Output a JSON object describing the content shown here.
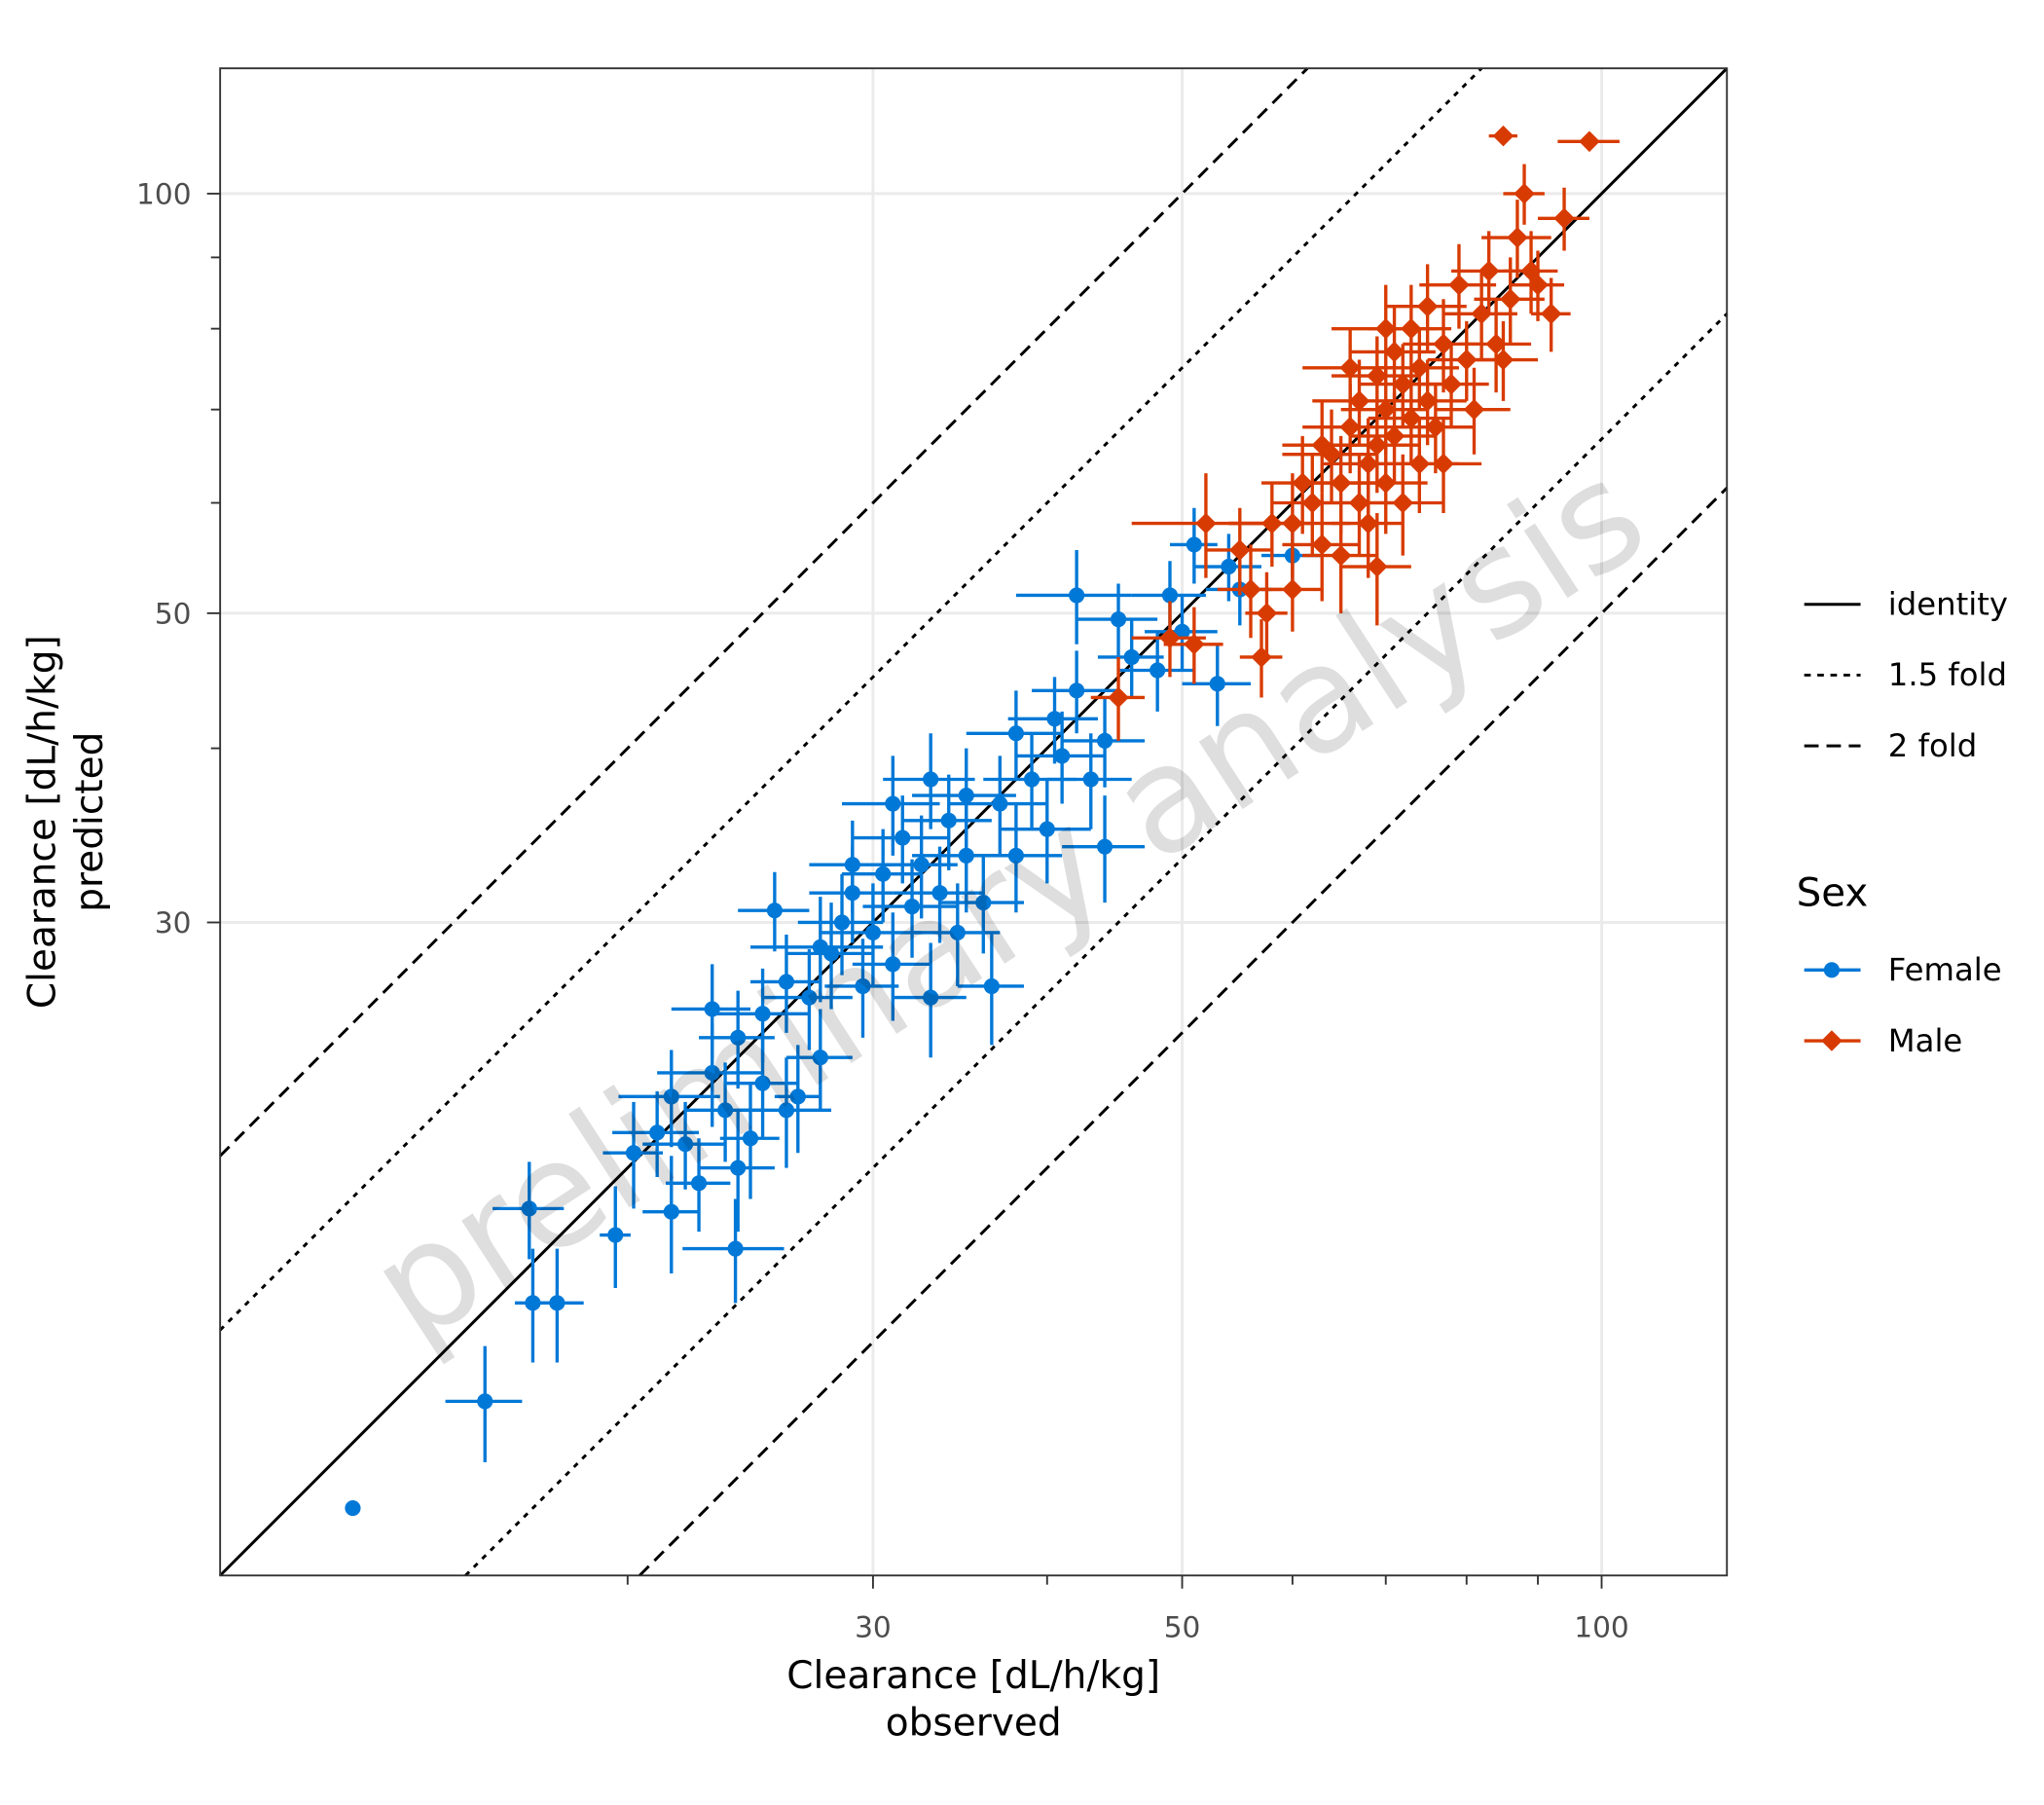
{
  "chart_data": {
    "type": "scatter",
    "x_scale": "log",
    "y_scale": "log",
    "xlim": [
      10.2,
      123
    ],
    "ylim": [
      10.2,
      123
    ],
    "x_ticks": [
      30,
      50,
      100
    ],
    "y_ticks": [
      30,
      50,
      100
    ],
    "x_tick_labels": [
      "30",
      "50",
      "100"
    ],
    "y_tick_labels": [
      "30",
      "50",
      "100"
    ],
    "x_minor_ticks": [
      20,
      40,
      60,
      70,
      80,
      90
    ],
    "y_minor_ticks": [
      40,
      60,
      70,
      80,
      90
    ],
    "xlabel_line1": "Clearance [dL/h/kg]",
    "xlabel_line2": "observed",
    "ylabel_line1": "Clearance [dL/h/kg]",
    "ylabel_line2": "predicted",
    "watermark": "preliminary analysis",
    "grid": true,
    "reference_lines": [
      {
        "name": "identity",
        "factor": 1,
        "style": "solid"
      },
      {
        "name": "1.5 fold",
        "factor": 1.5,
        "style": "dotted"
      },
      {
        "name": "2 fold",
        "factor": 2,
        "style": "dashed"
      }
    ],
    "legend_title": "Sex",
    "legend_placement": "right",
    "point_format": [
      "observed",
      "predicted",
      "observed_err",
      "predicted_err"
    ],
    "series": [
      {
        "name": "Female",
        "color": "#0078d7",
        "marker": "circle",
        "points": [
          [
            12.7,
            11.4,
            0,
            0
          ],
          [
            15.8,
            13.6,
            1,
            1.3
          ],
          [
            17,
            18.7,
            1,
            1.5
          ],
          [
            17.1,
            16,
            0.5,
            1.5
          ],
          [
            17.8,
            16,
            0.8,
            1.5
          ],
          [
            19.6,
            17.9,
            0.5,
            1.5
          ],
          [
            23.9,
            17.5,
            2,
            1.5
          ],
          [
            20.2,
            20.5,
            1,
            1.8
          ],
          [
            21,
            21.2,
            1.5,
            1.5
          ],
          [
            21.5,
            22.5,
            1.8,
            1.8
          ],
          [
            22,
            20.8,
            1.5,
            1.5
          ],
          [
            22.5,
            19.5,
            1.2,
            1.5
          ],
          [
            23,
            23.4,
            2,
            2
          ],
          [
            23.5,
            22,
            1.5,
            1.8
          ],
          [
            24,
            24.8,
            1.5,
            2
          ],
          [
            24.5,
            21,
            1.2,
            2
          ],
          [
            25,
            25.8,
            2,
            2
          ],
          [
            25,
            23,
            1.5,
            2
          ],
          [
            25.5,
            30.6,
            1.5,
            2
          ],
          [
            26,
            27.2,
            1.5,
            2.2
          ],
          [
            26.5,
            22.5,
            1,
            2
          ],
          [
            27,
            26.5,
            2,
            2.2
          ],
          [
            27.5,
            24,
            1.5,
            2
          ],
          [
            28,
            28.5,
            2,
            2.5
          ],
          [
            28.5,
            30,
            2,
            2.5
          ],
          [
            29,
            31.5,
            2,
            2.5
          ],
          [
            29.5,
            27,
            1.8,
            2.2
          ],
          [
            30,
            29.5,
            2.5,
            2.5
          ],
          [
            30.5,
            32.5,
            2,
            2.5
          ],
          [
            31,
            28,
            2,
            2.5
          ],
          [
            31.5,
            34.5,
            2.5,
            2.5
          ],
          [
            32,
            30.8,
            2.5,
            2.5
          ],
          [
            32.5,
            33,
            2,
            2.8
          ],
          [
            33,
            26.5,
            2,
            2.5
          ],
          [
            33.5,
            31.5,
            2.5,
            2.5
          ],
          [
            34,
            35.5,
            2.5,
            2.8
          ],
          [
            34.5,
            29.5,
            2.5,
            2.5
          ],
          [
            35,
            33.5,
            3,
            3
          ],
          [
            36,
            31,
            2.5,
            2.5
          ],
          [
            36.5,
            27,
            2,
            2.5
          ],
          [
            37,
            36.5,
            3,
            3
          ],
          [
            38,
            41,
            3,
            3
          ],
          [
            39,
            38,
            3,
            3
          ],
          [
            40,
            35,
            3,
            3
          ],
          [
            40.5,
            42,
            3,
            3
          ],
          [
            41,
            39.5,
            3,
            3
          ],
          [
            42,
            44,
            3,
            3
          ],
          [
            43,
            38,
            3,
            3
          ],
          [
            44,
            40.5,
            3,
            3
          ],
          [
            44,
            34,
            3,
            3
          ],
          [
            45,
            49.5,
            3,
            3
          ],
          [
            46,
            46.5,
            2.5,
            3
          ],
          [
            48,
            45.5,
            3,
            3
          ],
          [
            49,
            51.5,
            3,
            3
          ],
          [
            50,
            48.5,
            3,
            3
          ],
          [
            51,
            56,
            2,
            3.5
          ],
          [
            53,
            44.5,
            3,
            3
          ],
          [
            54,
            54,
            3,
            3
          ],
          [
            55,
            52,
            3,
            3
          ],
          [
            60,
            55,
            3,
            3
          ],
          [
            42,
            51.5,
            4,
            4
          ],
          [
            33,
            38,
            2.5,
            3
          ],
          [
            29,
            33,
            2,
            2.5
          ],
          [
            27.5,
            28.8,
            3,
            2.5
          ],
          [
            23,
            26,
            1.5,
            2
          ],
          [
            35,
            37,
            3,
            3
          ],
          [
            38,
            33.5,
            3,
            3
          ],
          [
            31,
            36.5,
            2.5,
            3
          ],
          [
            26,
            22,
            2,
            2
          ],
          [
            24,
            20,
            1.5,
            2
          ],
          [
            21.5,
            18.6,
            1,
            1.8
          ]
        ]
      },
      {
        "name": "Male",
        "color": "#d83b01",
        "marker": "diamond",
        "points": [
          [
            45,
            43.5,
            2,
            3
          ],
          [
            49,
            48,
            3,
            3
          ],
          [
            51,
            47.5,
            2.5,
            3
          ],
          [
            52,
            58,
            6,
            5
          ],
          [
            55,
            55.5,
            3,
            4
          ],
          [
            56,
            52,
            3,
            4
          ],
          [
            57,
            46.5,
            2,
            3
          ],
          [
            57.5,
            50,
            2,
            3.5
          ],
          [
            58,
            58,
            4,
            4
          ],
          [
            60,
            52,
            3,
            3.5
          ],
          [
            62,
            60,
            4,
            5
          ],
          [
            63,
            56,
            4,
            5
          ],
          [
            64,
            65,
            5,
            5
          ],
          [
            65,
            62,
            5,
            5
          ],
          [
            65,
            55,
            4,
            5
          ],
          [
            66,
            68,
            5,
            5
          ],
          [
            67,
            60,
            5,
            5
          ],
          [
            67,
            71,
            5,
            5
          ],
          [
            68,
            64,
            5,
            5
          ],
          [
            68,
            58,
            4,
            5
          ],
          [
            69,
            74,
            5,
            5
          ],
          [
            69,
            66,
            5,
            5
          ],
          [
            70,
            62,
            5,
            5
          ],
          [
            70,
            70,
            5,
            5
          ],
          [
            71,
            77,
            5,
            6
          ],
          [
            71,
            67,
            5,
            5
          ],
          [
            72,
            60,
            5,
            5
          ],
          [
            72,
            73,
            5,
            5
          ],
          [
            73,
            69,
            5,
            5
          ],
          [
            73,
            80,
            5,
            6
          ],
          [
            74,
            64,
            5,
            5
          ],
          [
            74,
            75,
            5,
            5
          ],
          [
            75,
            71,
            5,
            5
          ],
          [
            75,
            83,
            5,
            6
          ],
          [
            76,
            68,
            5,
            5
          ],
          [
            77,
            78,
            5,
            6
          ],
          [
            78,
            73,
            5,
            5
          ],
          [
            79,
            86,
            5,
            6
          ],
          [
            80,
            76,
            5,
            5
          ],
          [
            81,
            70,
            5,
            5
          ],
          [
            82,
            82,
            5,
            6
          ],
          [
            83,
            88,
            5,
            6
          ],
          [
            84,
            78,
            5,
            6
          ],
          [
            85,
            110,
            2,
            0
          ],
          [
            86,
            84,
            5,
            6
          ],
          [
            87,
            93,
            5,
            6
          ],
          [
            88,
            100,
            3,
            5
          ],
          [
            89,
            88,
            4,
            6
          ],
          [
            90,
            86,
            4,
            5
          ],
          [
            92,
            82,
            3,
            5
          ],
          [
            94,
            96,
            4,
            5
          ],
          [
            98,
            109,
            5,
            0
          ],
          [
            66,
            75,
            5,
            5
          ],
          [
            63,
            66,
            4,
            5
          ],
          [
            61,
            62,
            4,
            5
          ],
          [
            70,
            80,
            6,
            6
          ],
          [
            77,
            64,
            5,
            5
          ],
          [
            60,
            58,
            6,
            5
          ],
          [
            69,
            54,
            4,
            5
          ],
          [
            85,
            76,
            5,
            5
          ]
        ]
      }
    ]
  }
}
